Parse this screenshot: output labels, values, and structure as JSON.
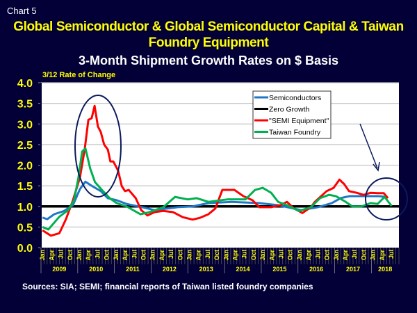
{
  "header": {
    "chart_label": "Chart 5",
    "title": "Global Semiconductor & Global Semiconductor Capital & Taiwan Foundry Equipment",
    "subtitle": "3-Month Shipment Growth Rates on $ Basis"
  },
  "source": "Sources: SIA; SEMI; financial reports of Taiwan listed foundry companies",
  "colors": {
    "background": "#030038",
    "plot": "#ffffff",
    "axis_text": "#ffff00",
    "annotation": "#0a1a5c"
  },
  "chart_data": {
    "type": "line",
    "title": "3-Month Shipment Growth Rates on $ Basis",
    "ylabel": "3/12 Rate of Change",
    "xlabel": "",
    "ylim": [
      0,
      4.0
    ],
    "xlim": [
      2009.0,
      2018.75
    ],
    "yticks": [
      "0.0",
      "0.5",
      "1.0",
      "1.5",
      "2.0",
      "2.5",
      "3.0",
      "3.5",
      "4.0"
    ],
    "month_labels": [
      "Jan",
      "Apr",
      "Jul",
      "Oct"
    ],
    "years": [
      "2009",
      "2010",
      "2011",
      "2012",
      "2013",
      "2014",
      "2015",
      "2016",
      "2017",
      "2018"
    ],
    "grid": true,
    "legend_placement": "top-center",
    "series": [
      {
        "name": "Semiconductors",
        "color": "#1f77c8",
        "points": [
          [
            2009.04,
            0.73
          ],
          [
            2009.17,
            0.69
          ],
          [
            2009.36,
            0.81
          ],
          [
            2009.63,
            0.89
          ],
          [
            2009.87,
            1.03
          ],
          [
            2010.06,
            1.42
          ],
          [
            2010.21,
            1.6
          ],
          [
            2010.38,
            1.5
          ],
          [
            2010.63,
            1.37
          ],
          [
            2010.82,
            1.2
          ],
          [
            2011.06,
            1.15
          ],
          [
            2011.33,
            1.06
          ],
          [
            2011.76,
            0.98
          ],
          [
            2012.09,
            0.91
          ],
          [
            2012.71,
            0.98
          ],
          [
            2013.13,
            1.0
          ],
          [
            2013.56,
            1.08
          ],
          [
            2014.19,
            1.11
          ],
          [
            2014.95,
            1.08
          ],
          [
            2015.46,
            1.03
          ],
          [
            2016.08,
            0.91
          ],
          [
            2016.54,
            0.98
          ],
          [
            2016.92,
            1.08
          ],
          [
            2017.16,
            1.2
          ],
          [
            2017.41,
            1.25
          ],
          [
            2017.79,
            1.25
          ],
          [
            2018.17,
            1.25
          ],
          [
            2018.43,
            1.23
          ]
        ]
      },
      {
        "name": "Zero Growth",
        "color": "#000000",
        "points": [
          [
            2009.0,
            1.0
          ],
          [
            2018.75,
            1.0
          ]
        ]
      },
      {
        "name": "\"SEMI Equipment\"",
        "color": "#ff0000",
        "points": [
          [
            2009.04,
            0.42
          ],
          [
            2009.27,
            0.29
          ],
          [
            2009.5,
            0.35
          ],
          [
            2009.68,
            0.69
          ],
          [
            2009.87,
            1.15
          ],
          [
            2010.06,
            1.7
          ],
          [
            2010.19,
            2.38
          ],
          [
            2010.29,
            3.1
          ],
          [
            2010.38,
            3.14
          ],
          [
            2010.46,
            3.44
          ],
          [
            2010.55,
            2.94
          ],
          [
            2010.63,
            2.8
          ],
          [
            2010.72,
            2.5
          ],
          [
            2010.82,
            2.38
          ],
          [
            2010.89,
            2.09
          ],
          [
            2010.97,
            2.09
          ],
          [
            2011.1,
            1.87
          ],
          [
            2011.2,
            1.49
          ],
          [
            2011.29,
            1.37
          ],
          [
            2011.39,
            1.4
          ],
          [
            2011.58,
            1.2
          ],
          [
            2011.73,
            0.91
          ],
          [
            2011.9,
            0.78
          ],
          [
            2012.09,
            0.86
          ],
          [
            2012.33,
            0.89
          ],
          [
            2012.6,
            0.86
          ],
          [
            2012.86,
            0.74
          ],
          [
            2013.13,
            0.68
          ],
          [
            2013.32,
            0.72
          ],
          [
            2013.56,
            0.81
          ],
          [
            2013.75,
            0.95
          ],
          [
            2013.94,
            1.4
          ],
          [
            2014.27,
            1.4
          ],
          [
            2014.51,
            1.25
          ],
          [
            2014.76,
            1.15
          ],
          [
            2014.95,
            0.98
          ],
          [
            2015.27,
            0.98
          ],
          [
            2015.52,
            1.03
          ],
          [
            2015.7,
            1.11
          ],
          [
            2015.89,
            0.95
          ],
          [
            2016.12,
            0.84
          ],
          [
            2016.35,
            0.98
          ],
          [
            2016.46,
            1.11
          ],
          [
            2016.78,
            1.37
          ],
          [
            2016.97,
            1.45
          ],
          [
            2017.13,
            1.65
          ],
          [
            2017.26,
            1.54
          ],
          [
            2017.39,
            1.37
          ],
          [
            2017.6,
            1.33
          ],
          [
            2017.79,
            1.28
          ],
          [
            2017.98,
            1.33
          ],
          [
            2018.17,
            1.32
          ],
          [
            2018.34,
            1.32
          ],
          [
            2018.45,
            1.2
          ]
        ]
      },
      {
        "name": "Taiwan Foundry",
        "color": "#00b050",
        "points": [
          [
            2009.04,
            0.5
          ],
          [
            2009.2,
            0.44
          ],
          [
            2009.5,
            0.75
          ],
          [
            2009.74,
            0.91
          ],
          [
            2009.9,
            1.15
          ],
          [
            2010.02,
            1.7
          ],
          [
            2010.12,
            2.33
          ],
          [
            2010.21,
            2.41
          ],
          [
            2010.34,
            1.92
          ],
          [
            2010.47,
            1.59
          ],
          [
            2010.69,
            1.37
          ],
          [
            2010.87,
            1.2
          ],
          [
            2011.06,
            1.08
          ],
          [
            2011.33,
            1.0
          ],
          [
            2011.71,
            0.81
          ],
          [
            2011.95,
            0.86
          ],
          [
            2012.33,
            0.98
          ],
          [
            2012.65,
            1.23
          ],
          [
            2013.0,
            1.17
          ],
          [
            2013.24,
            1.2
          ],
          [
            2013.56,
            1.11
          ],
          [
            2014.08,
            1.17
          ],
          [
            2014.57,
            1.17
          ],
          [
            2014.83,
            1.4
          ],
          [
            2015.04,
            1.45
          ],
          [
            2015.27,
            1.33
          ],
          [
            2015.46,
            1.11
          ],
          [
            2015.7,
            1.03
          ],
          [
            2016.03,
            0.89
          ],
          [
            2016.35,
            0.98
          ],
          [
            2016.6,
            1.2
          ],
          [
            2016.84,
            1.28
          ],
          [
            2017.03,
            1.25
          ],
          [
            2017.3,
            1.11
          ],
          [
            2017.48,
            1.0
          ],
          [
            2017.73,
            1.0
          ],
          [
            2017.98,
            1.08
          ],
          [
            2018.17,
            1.06
          ],
          [
            2018.36,
            1.23
          ],
          [
            2018.55,
            1.01
          ]
        ]
      }
    ]
  }
}
